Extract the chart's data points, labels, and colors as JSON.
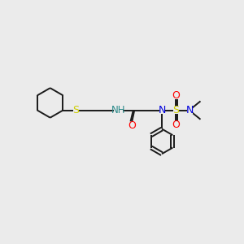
{
  "background_color": "#ebebeb",
  "bond_color": "#1a1a1a",
  "bond_width": 1.4,
  "S_color": "#cccc00",
  "N_color": "#0000dd",
  "O_color": "#ff0000",
  "NH_color": "#2a8a8a",
  "figsize": [
    3.0,
    3.0
  ],
  "dpi": 100,
  "xlim": [
    0,
    10
  ],
  "ylim": [
    0,
    10
  ]
}
